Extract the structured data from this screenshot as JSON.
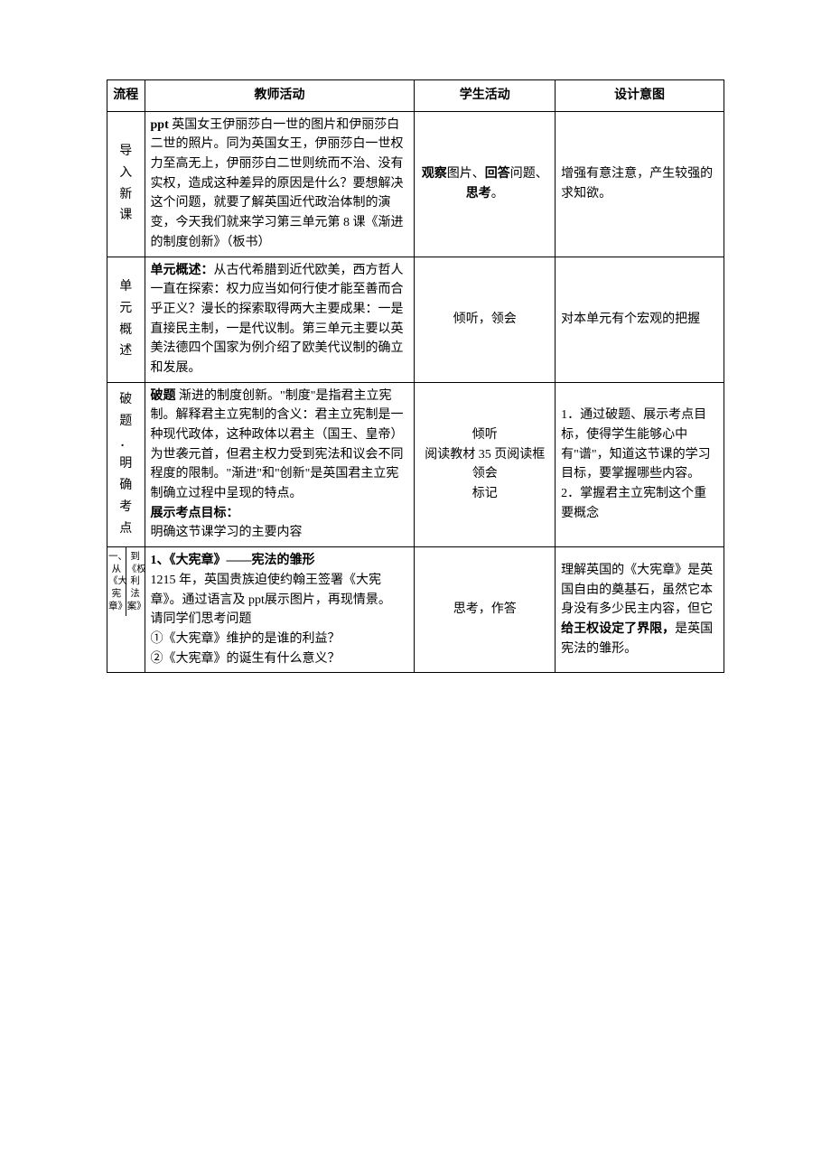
{
  "table": {
    "headers": {
      "flow": "流程",
      "teacher": "教师活动",
      "student": "学生活动",
      "intent": "设计意图"
    },
    "rows": [
      {
        "flow": "导入新课",
        "teacher_parts": [
          {
            "t": "ppt ",
            "b": true
          },
          {
            "t": "英国女王伊丽莎白一世的图片和伊丽莎白二世的照片。同为英国女王，伊丽莎白一世权力至高无上，伊丽莎白二世则统而不治、没有实权，造成这种差异的原因是什么？要想解决这个问题，就要了解英国近代政治体制的演变，今天我们就来学习第三单元第 8 课《渐进的制度创新》（板书）",
            "b": false
          }
        ],
        "student_parts": [
          {
            "t": "观察",
            "b": true
          },
          {
            "t": "图片、",
            "b": false
          },
          {
            "t": "回答",
            "b": true
          },
          {
            "t": "问题、",
            "b": false
          },
          {
            "t": "思考",
            "b": true
          },
          {
            "t": "。",
            "b": false
          }
        ],
        "intent_parts": [
          {
            "t": "增强有意注意，产生较强的求知欲。",
            "b": false
          }
        ]
      },
      {
        "flow": "单元概述",
        "teacher_parts": [
          {
            "t": "单元概述：",
            "b": true
          },
          {
            "t": "从古代希腊到近代欧美，西方哲人一直在探索：权力应当如何行使才能至善而合乎正义？漫长的探索取得两大主要成果：一是直接民主制，一是代议制。第三单元主要以英美法德四个国家为例介绍了欧美代议制的确立和发展。",
            "b": false
          }
        ],
        "student_parts": [
          {
            "t": "倾听，领会",
            "b": false
          }
        ],
        "intent_parts": [
          {
            "t": "对本单元有个宏观的把握",
            "b": false
          }
        ]
      },
      {
        "flow": "破题．明确考点",
        "teacher_parts": [
          {
            "t": "破题 ",
            "b": true
          },
          {
            "t": "渐进的制度创新。\"制度\"是指君主立宪制。解释君主立宪制的含义：君主立宪制是一种现代政体，这种政体以君主（国王、皇帝）为世袭元首，但君主权力受到宪法和议会不同程度的限制。\"渐进\"和\"创新\"是英国君主立宪制确立过程中呈现的特点。\n",
            "b": false
          },
          {
            "t": "展示考点目标：",
            "b": true
          },
          {
            "t": "\n明确这节课学习的主要内容",
            "b": false
          }
        ],
        "student_parts": [
          {
            "t": "倾听\n阅读教材 35 页阅读框领会\n标记",
            "b": false
          }
        ],
        "intent_parts": [
          {
            "t": "1．通过破题、展示考点目标，使得学生能够心中有\"谱\"，知道这节课的学习目标，要掌握哪些内容。\n2．掌握君主立宪制这个重要概念",
            "b": false
          }
        ]
      },
      {
        "flow_outer": "一、从《大宪章》到《权利法案》",
        "flow_inner": "",
        "teacher_parts": [
          {
            "t": "1、《大宪章》——宪法的雏形",
            "b": true
          },
          {
            "t": "\n1215 年，英国贵族迫使约翰王签署《大宪章》。通过语言及 ppt展示图片，再现情景。\n请同学们思考问题\n①《大宪章》维护的是谁的利益？\n②《大宪章》的诞生有什么意义？",
            "b": false
          }
        ],
        "student_parts": [
          {
            "t": "思考，作答",
            "b": false
          }
        ],
        "intent_parts": [
          {
            "t": "理解英国的《大宪章》是英国自由的奠基石，虽然它本身没有多少民主内容，但它",
            "b": false
          },
          {
            "t": "给王权设定了界限，",
            "b": true
          },
          {
            "t": "是英国宪法的雏形。",
            "b": false
          }
        ]
      }
    ]
  }
}
